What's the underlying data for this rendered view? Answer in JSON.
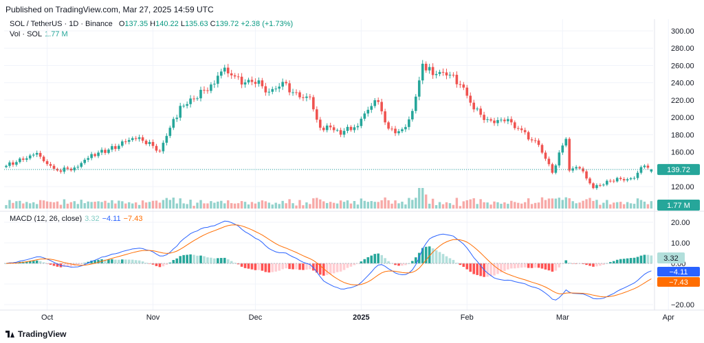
{
  "header": {
    "published": "Published on TradingView.com, Mar 27, 2025 14:59 UTC",
    "symbol": "SOL / TetherUS · 1D · Binance",
    "o_label": "O",
    "o_value": "137.35",
    "h_label": "H",
    "h_value": "140.22",
    "l_label": "L",
    "l_value": "135.63",
    "c_label": "C",
    "c_value": "139.72",
    "change": "+2.38 (+1.73%)",
    "vol_label": "Vol · SOL",
    "vol_value": "1.77 M"
  },
  "macd_legend": {
    "label": "MACD (12, 26, close)",
    "hist": "3.32",
    "macd": "−4.11",
    "signal": "−7.43"
  },
  "footer": {
    "brand": "TradingView"
  },
  "colors": {
    "up": "#26a69a",
    "down": "#ef5350",
    "macd": "#2962ff",
    "signal": "#ff6d00",
    "hist_up_strong": "#26a69a",
    "hist_up_weak": "#b2dfdb",
    "hist_down_strong": "#ff5252",
    "hist_down_weak": "#ffcdd2"
  },
  "chart_data": [
    {
      "type": "candlestick",
      "title": "SOL / TetherUS · 1D · Binance",
      "ylim": [
        110,
        305
      ],
      "y_ticks": [
        "300.00",
        "280.00",
        "260.00",
        "240.00",
        "220.00",
        "200.00",
        "180.00",
        "160.00",
        "140.00",
        "120.00"
      ],
      "x_tick_labels": [
        "Oct",
        "Nov",
        "Dec",
        "2025",
        "Feb",
        "Mar",
        "Apr"
      ],
      "last_price_label": "139.72",
      "volume_label": "1.77 M",
      "close_anchors": [
        {
          "date": "2024-09-19",
          "close": 144
        },
        {
          "date": "2024-09-28",
          "close": 157
        },
        {
          "date": "2024-10-03",
          "close": 138
        },
        {
          "date": "2024-10-09",
          "close": 142
        },
        {
          "date": "2024-10-14",
          "close": 157
        },
        {
          "date": "2024-10-21",
          "close": 165
        },
        {
          "date": "2024-10-26",
          "close": 176
        },
        {
          "date": "2024-10-30",
          "close": 172
        },
        {
          "date": "2024-11-03",
          "close": 162
        },
        {
          "date": "2024-11-06",
          "close": 188
        },
        {
          "date": "2024-11-09",
          "close": 210
        },
        {
          "date": "2024-11-12",
          "close": 218
        },
        {
          "date": "2024-11-18",
          "close": 238
        },
        {
          "date": "2024-11-22",
          "close": 258
        },
        {
          "date": "2024-11-24",
          "close": 252
        },
        {
          "date": "2024-11-27",
          "close": 238
        },
        {
          "date": "2024-12-01",
          "close": 242
        },
        {
          "date": "2024-12-05",
          "close": 230
        },
        {
          "date": "2024-12-09",
          "close": 241
        },
        {
          "date": "2024-12-13",
          "close": 225
        },
        {
          "date": "2024-12-17",
          "close": 220
        },
        {
          "date": "2024-12-20",
          "close": 188
        },
        {
          "date": "2024-12-23",
          "close": 190
        },
        {
          "date": "2024-12-26",
          "close": 183
        },
        {
          "date": "2024-12-31",
          "close": 190
        },
        {
          "date": "2025-01-04",
          "close": 215
        },
        {
          "date": "2025-01-06",
          "close": 217
        },
        {
          "date": "2025-01-09",
          "close": 187
        },
        {
          "date": "2025-01-13",
          "close": 183
        },
        {
          "date": "2025-01-16",
          "close": 205
        },
        {
          "date": "2025-01-19",
          "close": 262
        },
        {
          "date": "2025-01-22",
          "close": 252
        },
        {
          "date": "2025-01-26",
          "close": 253
        },
        {
          "date": "2025-01-30",
          "close": 238
        },
        {
          "date": "2025-02-03",
          "close": 210
        },
        {
          "date": "2025-02-07",
          "close": 196
        },
        {
          "date": "2025-02-13",
          "close": 198
        },
        {
          "date": "2025-02-18",
          "close": 180
        },
        {
          "date": "2025-02-22",
          "close": 167
        },
        {
          "date": "2025-02-26",
          "close": 136
        },
        {
          "date": "2025-03-02",
          "close": 178
        },
        {
          "date": "2025-03-03",
          "close": 141
        },
        {
          "date": "2025-03-06",
          "close": 141
        },
        {
          "date": "2025-03-10",
          "close": 118
        },
        {
          "date": "2025-03-14",
          "close": 125
        },
        {
          "date": "2025-03-17",
          "close": 130
        },
        {
          "date": "2025-03-21",
          "close": 128
        },
        {
          "date": "2025-03-25",
          "close": 144
        },
        {
          "date": "2025-03-27",
          "close": 139.72
        }
      ]
    },
    {
      "type": "macd",
      "title": "MACD (12, 26, close)",
      "ylim": [
        -22,
        22
      ],
      "y_ticks": [
        "20.00",
        "10.00",
        "0.00",
        "−10.00",
        "−20.00"
      ],
      "last_labels": {
        "hist": "3.32",
        "macd": "−4.11",
        "signal": "−7.43"
      }
    }
  ]
}
